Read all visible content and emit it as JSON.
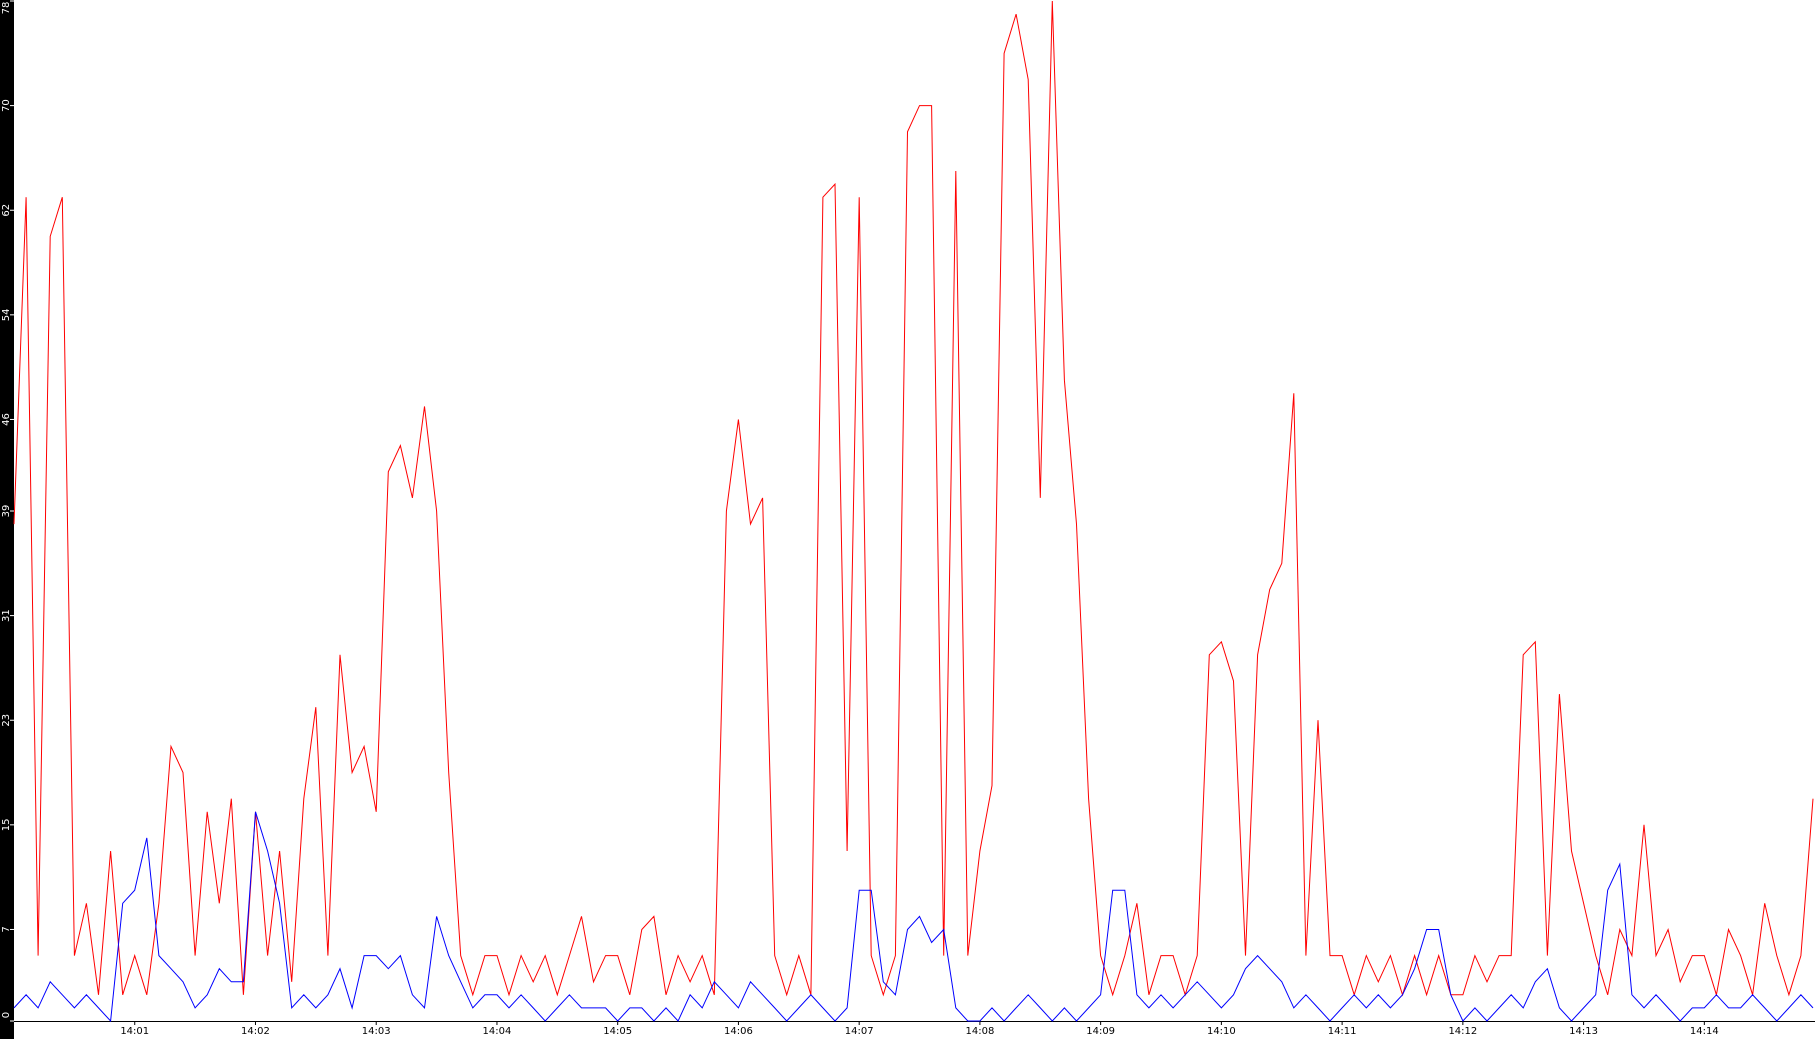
{
  "chart_data": {
    "type": "line",
    "categories": [
      null,
      null,
      null,
      null,
      null,
      null,
      null,
      null,
      null,
      null,
      "14:01",
      null,
      null,
      null,
      null,
      null,
      null,
      null,
      null,
      null,
      "14:02",
      null,
      null,
      null,
      null,
      null,
      null,
      null,
      null,
      null,
      "14:03",
      null,
      null,
      null,
      null,
      null,
      null,
      null,
      null,
      null,
      "14:04",
      null,
      null,
      null,
      null,
      null,
      null,
      null,
      null,
      null,
      "14:05",
      null,
      null,
      null,
      null,
      null,
      null,
      null,
      null,
      null,
      "14:06",
      null,
      null,
      null,
      null,
      null,
      null,
      null,
      null,
      null,
      "14:07",
      null,
      null,
      null,
      null,
      null,
      null,
      null,
      null,
      null,
      "14:08",
      null,
      null,
      null,
      null,
      null,
      null,
      null,
      null,
      null,
      "14:09",
      null,
      null,
      null,
      null,
      null,
      null,
      null,
      null,
      null,
      "14:10",
      null,
      null,
      null,
      null,
      null,
      null,
      null,
      null,
      null,
      "14:11",
      null,
      null,
      null,
      null,
      null,
      null,
      null,
      null,
      null,
      "14:12",
      null,
      null,
      null,
      null,
      null,
      null,
      null,
      null,
      null,
      "14:13",
      null,
      null,
      null,
      null,
      null,
      null,
      null,
      null,
      null,
      "14:14",
      null,
      null,
      null,
      null,
      null,
      null,
      null,
      null,
      null
    ],
    "series": [
      {
        "color": "#ff0000",
        "values": [
          38,
          63,
          5,
          60,
          63,
          5,
          9,
          2,
          13,
          2,
          5,
          2,
          9,
          21,
          19,
          5,
          16,
          9,
          17,
          2,
          16,
          5,
          13,
          3,
          17,
          24,
          5,
          28,
          19,
          21,
          16,
          42,
          44,
          40,
          47,
          39,
          19,
          5,
          2,
          5,
          5,
          2,
          5,
          3,
          5,
          2,
          5,
          8,
          3,
          5,
          5,
          2,
          7,
          8,
          2,
          5,
          3,
          5,
          2,
          39,
          46,
          38,
          40,
          5,
          2,
          5,
          2,
          63,
          64,
          13,
          63,
          5,
          2,
          5,
          68,
          70,
          70,
          5,
          65,
          5,
          13,
          18,
          74,
          77,
          72,
          40,
          78,
          49,
          38,
          17,
          5,
          2,
          5,
          9,
          2,
          5,
          5,
          2,
          5,
          28,
          29,
          26,
          5,
          28,
          33,
          35,
          48,
          5,
          23,
          5,
          5,
          2,
          5,
          3,
          5,
          2,
          5,
          2,
          5,
          2,
          2,
          5,
          3,
          5,
          5,
          28,
          29,
          5,
          25,
          13,
          9,
          5,
          2,
          7,
          5,
          15,
          5,
          7,
          3,
          5,
          5,
          2,
          7,
          5,
          2,
          9,
          5,
          2,
          5,
          17
        ]
      },
      {
        "color": "#0000ff",
        "values": [
          1,
          2,
          1,
          3,
          2,
          1,
          2,
          1,
          0,
          9,
          10,
          14,
          5,
          4,
          3,
          1,
          2,
          4,
          3,
          3,
          16,
          13,
          9,
          1,
          2,
          1,
          2,
          4,
          1,
          5,
          5,
          4,
          5,
          2,
          1,
          8,
          5,
          3,
          1,
          2,
          2,
          1,
          2,
          1,
          0,
          1,
          2,
          1,
          1,
          1,
          0,
          1,
          1,
          0,
          1,
          0,
          2,
          1,
          3,
          2,
          1,
          3,
          2,
          1,
          0,
          1,
          2,
          1,
          0,
          1,
          10,
          10,
          3,
          2,
          7,
          8,
          6,
          7,
          1,
          0,
          0,
          1,
          0,
          1,
          2,
          1,
          0,
          1,
          0,
          1,
          2,
          10,
          10,
          2,
          1,
          2,
          1,
          2,
          3,
          2,
          1,
          2,
          4,
          5,
          4,
          3,
          1,
          2,
          1,
          0,
          1,
          2,
          1,
          2,
          1,
          2,
          4,
          7,
          7,
          2,
          0,
          1,
          0,
          1,
          2,
          1,
          3,
          4,
          1,
          0,
          1,
          2,
          10,
          12,
          2,
          1,
          2,
          1,
          0,
          1,
          1,
          2,
          1,
          1,
          2,
          1,
          0,
          1,
          2,
          1
        ]
      }
    ],
    "ylim": [
      0,
      78
    ],
    "yticks": [
      0,
      7,
      15,
      23,
      31,
      39,
      46,
      54,
      62,
      70,
      78
    ]
  }
}
